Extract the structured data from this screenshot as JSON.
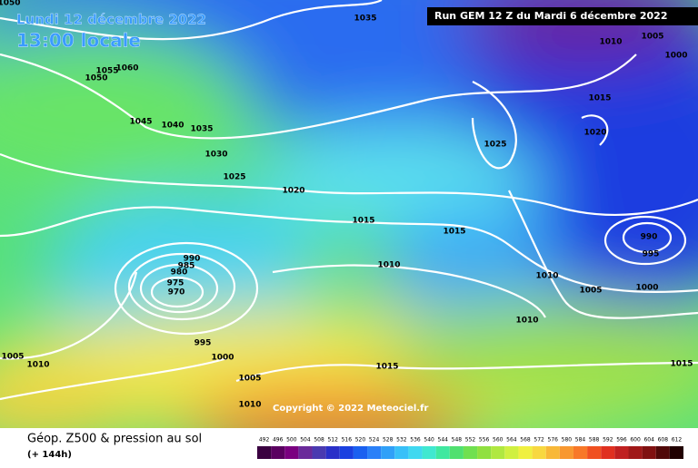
{
  "header": {
    "date": "Lundi 12 décembre 2022",
    "time": "13:00 locale",
    "run": "Run GEM 12 Z du Mardi 6 décembre 2022"
  },
  "isobar_labels": [
    "1050",
    "1035",
    "1010",
    "1005",
    "1000",
    "1055",
    "1060",
    "1050",
    "1045",
    "1040",
    "1035",
    "1030",
    "1025",
    "1020",
    "1015",
    "1020",
    "1025",
    "1015",
    "1015",
    "990",
    "995",
    "990",
    "985",
    "980",
    "975",
    "970",
    "1010",
    "1010",
    "1005",
    "1000",
    "1010",
    "995",
    "1000",
    "1005",
    "1010",
    "1005",
    "1010",
    "1015",
    "1015"
  ],
  "copyright": "Copyright © 2022 Meteociel.fr",
  "footer": {
    "title": "Géop. Z500 & pression au sol",
    "lead": "(+ 144h)"
  },
  "colorbar": {
    "labels": [
      492,
      496,
      500,
      504,
      508,
      512,
      516,
      520,
      524,
      528,
      532,
      536,
      540,
      544,
      548,
      552,
      556,
      560,
      564,
      568,
      572,
      576,
      580,
      584,
      588,
      592,
      596,
      600,
      604,
      608,
      612
    ]
  }
}
